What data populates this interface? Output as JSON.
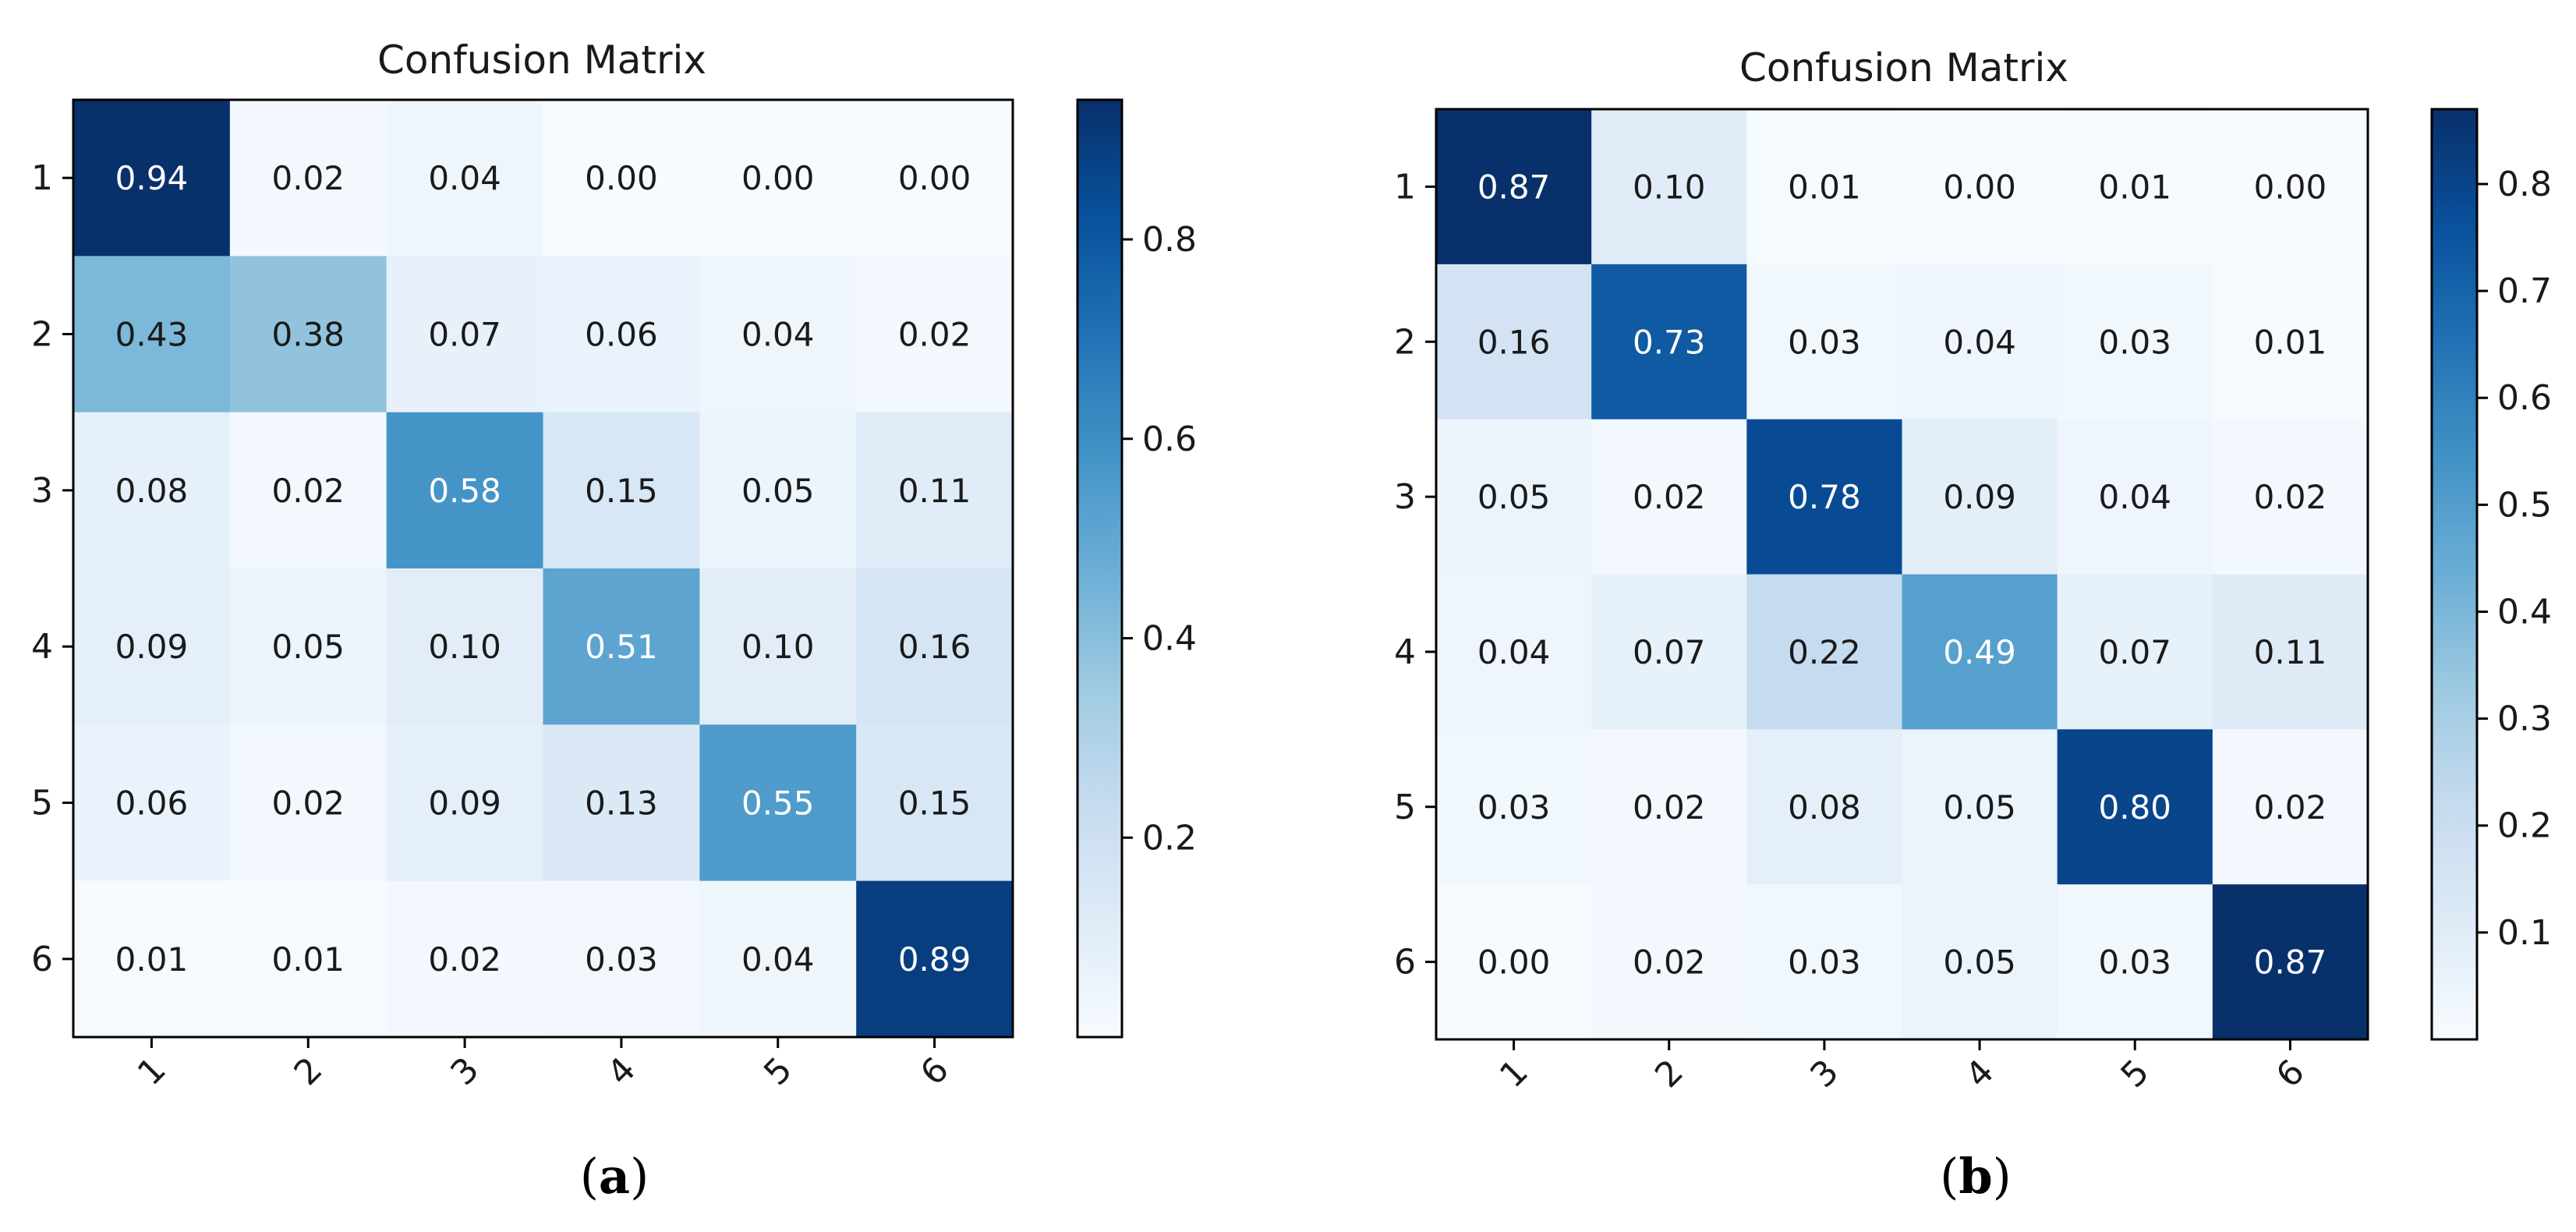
{
  "figure": {
    "panels": [
      "a",
      "b"
    ]
  },
  "chart_data": [
    {
      "type": "heatmap",
      "title": "Confusion Matrix",
      "caption": "(a)",
      "caption_letter": "a",
      "row_labels": [
        "1",
        "2",
        "3",
        "4",
        "5",
        "6"
      ],
      "col_labels": [
        "1",
        "2",
        "3",
        "4",
        "5",
        "6"
      ],
      "values": [
        [
          0.94,
          0.02,
          0.04,
          0.0,
          0.0,
          0.0
        ],
        [
          0.43,
          0.38,
          0.07,
          0.06,
          0.04,
          0.02
        ],
        [
          0.08,
          0.02,
          0.58,
          0.15,
          0.05,
          0.11
        ],
        [
          0.09,
          0.05,
          0.1,
          0.51,
          0.1,
          0.16
        ],
        [
          0.06,
          0.02,
          0.09,
          0.13,
          0.55,
          0.15
        ],
        [
          0.01,
          0.01,
          0.02,
          0.03,
          0.04,
          0.89
        ]
      ],
      "labels": [
        [
          "0.94",
          "0.02",
          "0.04",
          "0.00",
          "0.00",
          "0.00"
        ],
        [
          "0.43",
          "0.38",
          "0.07",
          "0.06",
          "0.04",
          "0.02"
        ],
        [
          "0.08",
          "0.02",
          "0.58",
          "0.15",
          "0.05",
          "0.11"
        ],
        [
          "0.09",
          "0.05",
          "0.10",
          "0.51",
          "0.10",
          "0.16"
        ],
        [
          "0.06",
          "0.02",
          "0.09",
          "0.13",
          "0.55",
          "0.15"
        ],
        [
          "0.01",
          "0.01",
          "0.02",
          "0.03",
          "0.04",
          "0.89"
        ]
      ],
      "vmin": 0.0,
      "vmax": 0.94,
      "colormap": "Blues",
      "colorbar_ticks": [
        0.2,
        0.4,
        0.6,
        0.8
      ],
      "colorbar_tick_labels": [
        "0.2",
        "0.4",
        "0.6",
        "0.8"
      ]
    },
    {
      "type": "heatmap",
      "title": "Confusion Matrix",
      "caption": "(b)",
      "caption_letter": "b",
      "row_labels": [
        "1",
        "2",
        "3",
        "4",
        "5",
        "6"
      ],
      "col_labels": [
        "1",
        "2",
        "3",
        "4",
        "5",
        "6"
      ],
      "values": [
        [
          0.87,
          0.1,
          0.01,
          0.0,
          0.01,
          0.0
        ],
        [
          0.16,
          0.73,
          0.03,
          0.04,
          0.03,
          0.01
        ],
        [
          0.05,
          0.02,
          0.78,
          0.09,
          0.04,
          0.02
        ],
        [
          0.04,
          0.07,
          0.22,
          0.49,
          0.07,
          0.11
        ],
        [
          0.03,
          0.02,
          0.08,
          0.05,
          0.8,
          0.02
        ],
        [
          0.0,
          0.02,
          0.03,
          0.05,
          0.03,
          0.87
        ]
      ],
      "labels": [
        [
          "0.87",
          "0.10",
          "0.01",
          "0.00",
          "0.01",
          "0.00"
        ],
        [
          "0.16",
          "0.73",
          "0.03",
          "0.04",
          "0.03",
          "0.01"
        ],
        [
          "0.05",
          "0.02",
          "0.78",
          "0.09",
          "0.04",
          "0.02"
        ],
        [
          "0.04",
          "0.07",
          "0.22",
          "0.49",
          "0.07",
          "0.11"
        ],
        [
          "0.03",
          "0.02",
          "0.08",
          "0.05",
          "0.80",
          "0.02"
        ],
        [
          "0.00",
          "0.02",
          "0.03",
          "0.05",
          "0.03",
          "0.87"
        ]
      ],
      "vmin": 0.0,
      "vmax": 0.87,
      "colormap": "Blues",
      "colorbar_ticks": [
        0.1,
        0.2,
        0.3,
        0.4,
        0.5,
        0.6,
        0.7,
        0.8
      ],
      "colorbar_tick_labels": [
        "0.1",
        "0.2",
        "0.3",
        "0.4",
        "0.5",
        "0.6",
        "0.7",
        "0.8"
      ]
    }
  ]
}
